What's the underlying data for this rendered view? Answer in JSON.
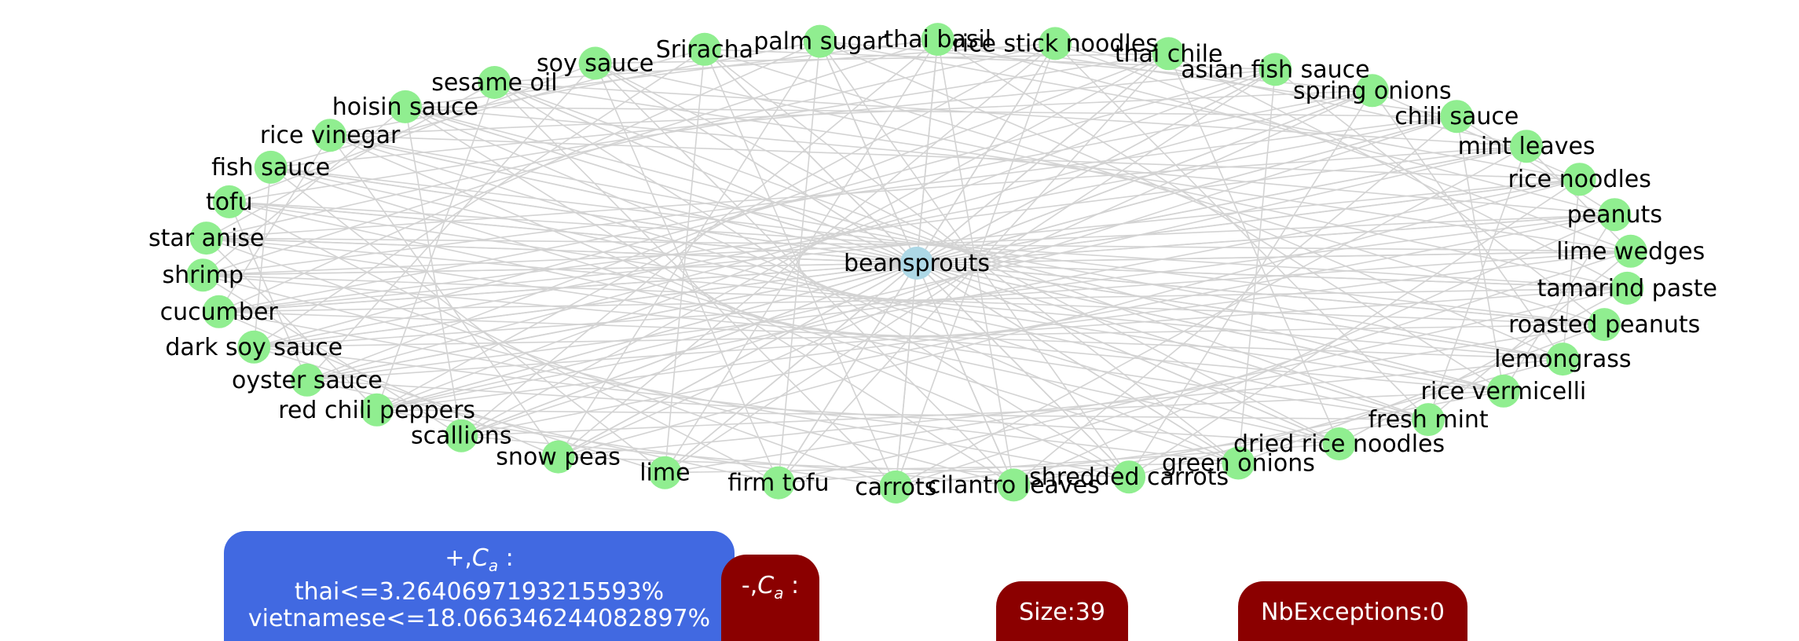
{
  "graph": {
    "center": {
      "name": "beansprouts"
    },
    "nodes": [
      "rice noodles",
      "peanuts",
      "lime wedges",
      "tamarind paste",
      "roasted peanuts",
      "lemongrass",
      "rice vermicelli",
      "fresh mint",
      "dried rice noodles",
      "green onions",
      "shredded carrots",
      "cilantro leaves",
      "carrots",
      "firm tofu",
      "lime",
      "snow peas",
      "scallions",
      "red chili peppers",
      "oyster sauce",
      "dark soy sauce",
      "cucumber",
      "shrimp",
      "star anise",
      "tofu",
      "fish sauce",
      "rice vinegar",
      "hoisin sauce",
      "sesame oil",
      "soy sauce",
      "Sriracha",
      "palm sugar",
      "thai basil",
      "rice stick noodles",
      "thai chile",
      "asian fish sauce",
      "spring onions",
      "chili sauce",
      "mint leaves"
    ],
    "colors": {
      "node": "#90ee90",
      "center": "#add8e6",
      "edge": "#d3d3d3"
    }
  },
  "legend": {
    "positive": {
      "title_prefix": "+,",
      "title_symbol": "C",
      "title_sub": "a",
      "title_suffix": " :",
      "lines": [
        "thai<=3.2640697193215593%",
        "vietnamese<=18.066346244082897%"
      ],
      "color": "#4169e1"
    },
    "negative": {
      "title_prefix": "-,",
      "title_symbol": "C",
      "title_sub": "a",
      "title_suffix": " :",
      "color": "#8b0000"
    },
    "size": "Size:39",
    "exceptions": "NbExceptions:0"
  }
}
